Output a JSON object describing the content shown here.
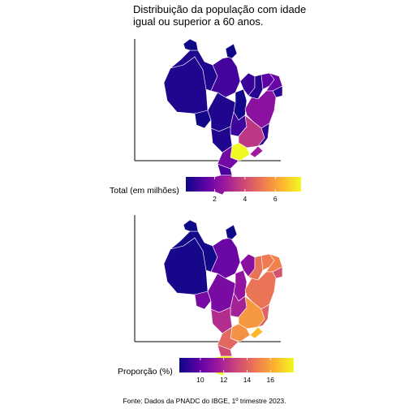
{
  "title": {
    "line1": "Distribuição da população com idade",
    "line2": "igual ou superior a 60 anos."
  },
  "palette": [
    "#0d0887",
    "#5c01a6",
    "#9c179e",
    "#cc4778",
    "#ed7953",
    "#fdb32f",
    "#f0f921"
  ],
  "maps": [
    {
      "legend_title": "Total (em milhões)",
      "scale": {
        "min": 0.1,
        "max": 7.7
      },
      "ticks": [
        {
          "value": 2,
          "label": "2"
        },
        {
          "value": 4,
          "label": "4"
        },
        {
          "value": 6,
          "label": "6"
        }
      ],
      "regions": {
        "north_west": 0.4,
        "amazonas": 0.4,
        "roraima": 0.1,
        "para": 1.0,
        "amapa": 0.1,
        "tocantins": 0.2,
        "rondonia": 0.2,
        "maranhao": 0.8,
        "piaui": 0.5,
        "ceara": 1.4,
        "rgn_pb_pe": 1.6,
        "al_se": 0.5,
        "bahia": 2.3,
        "mato_grosso": 0.4,
        "goias": 0.9,
        "minas": 3.5,
        "ms": 0.4,
        "sao_paulo": 7.7,
        "rio": 2.7,
        "es": 0.6,
        "parana": 1.8,
        "sc": 1.1,
        "rs": 2.3
      }
    },
    {
      "legend_title": "Proporção (%)",
      "scale": {
        "min": 8.2,
        "max": 18.0
      },
      "ticks": [
        {
          "value": 10,
          "label": "10"
        },
        {
          "value": 12,
          "label": "12"
        },
        {
          "value": 14,
          "label": "14"
        },
        {
          "value": 16,
          "label": "16"
        }
      ],
      "regions": {
        "north_west": 8.4,
        "amazonas": 8.3,
        "roraima": 8.2,
        "para": 10.2,
        "amapa": 8.2,
        "tocantins": 11.2,
        "rondonia": 10.5,
        "maranhao": 11.0,
        "piaui": 14.5,
        "ceara": 14.8,
        "rgn_pb_pe": 15.0,
        "al_se": 13.5,
        "bahia": 14.6,
        "mato_grosso": 10.6,
        "goias": 11.8,
        "minas": 15.6,
        "ms": 12.2,
        "sao_paulo": 15.4,
        "rio": 16.5,
        "es": 14.0,
        "parana": 14.2,
        "sc": 13.2,
        "rs": 18.0
      }
    }
  ],
  "source": "Fonte: Dados da PNADC do IBGE, 1º trimestre 2023."
}
